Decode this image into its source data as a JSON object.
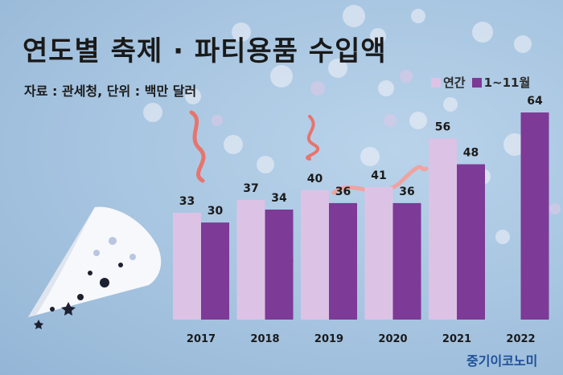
{
  "title": "연도별 축제 · 파티용품 수입액",
  "source": "자료 : 관세청, 단위 : 백만 달러",
  "brand": "중기이코노미",
  "colors": {
    "annual": "#dcc3e6",
    "jan_nov": "#7d3a96",
    "brand": "#1f4f9a"
  },
  "chart_data": {
    "type": "bar",
    "categories": [
      "2017",
      "2018",
      "2019",
      "2020",
      "2021",
      "2022"
    ],
    "series": [
      {
        "name": "연간",
        "values": [
          33,
          37,
          40,
          41,
          56,
          null
        ]
      },
      {
        "name": "1~11월",
        "values": [
          30,
          34,
          36,
          36,
          48,
          64
        ]
      }
    ],
    "ylim": [
      0,
      70
    ],
    "legend": "top-right",
    "grid": false
  }
}
